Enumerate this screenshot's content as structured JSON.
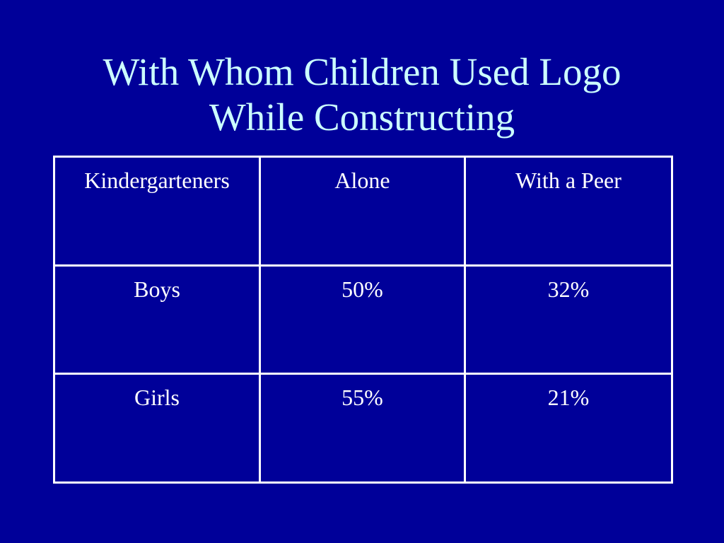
{
  "slide": {
    "title_line1": "With Whom Children Used Logo",
    "title_line2": "While Constructing"
  },
  "table": {
    "header": [
      "Kindergarteners",
      "Alone",
      "With a Peer"
    ],
    "rows": [
      [
        "Boys",
        "50%",
        "32%"
      ],
      [
        "Girls",
        "55%",
        "21%"
      ]
    ]
  },
  "colors": {
    "background": "#000099",
    "title": "#ccffff",
    "table_text": "#ffffff",
    "table_border": "#ffffff"
  }
}
